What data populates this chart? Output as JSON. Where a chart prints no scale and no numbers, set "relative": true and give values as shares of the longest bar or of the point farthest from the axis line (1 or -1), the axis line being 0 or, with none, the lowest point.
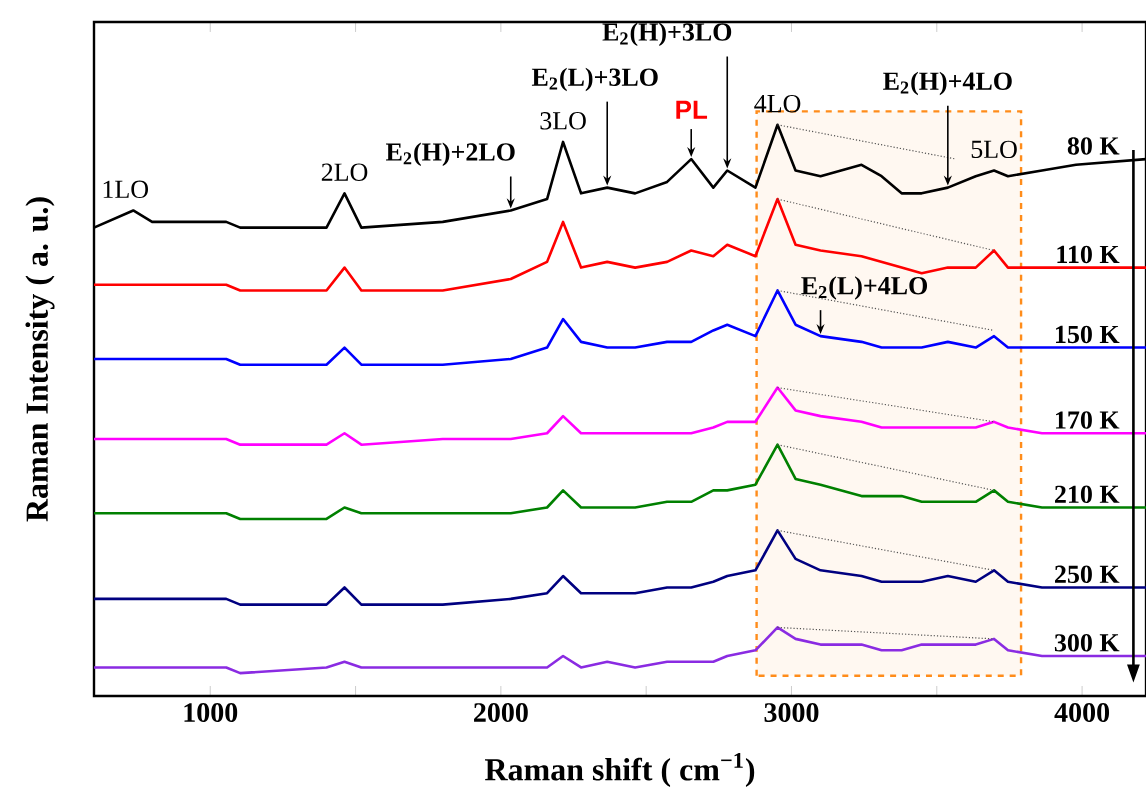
{
  "chart_data": {
    "type": "line",
    "relative": true,
    "xlabel": "Raman shift ( cm$^{−1}$)",
    "ylabel": "Raman Intensity ( a. u.)",
    "xlim": [
      600,
      4220
    ],
    "xticks": [
      1000,
      {
        "value": 1500,
        "label": null
      },
      2000,
      {
        "value": 2500,
        "label": null
      },
      3000,
      {
        "value": 3500,
        "label": null
      },
      4000
    ],
    "marker": "none",
    "line_style": "solid",
    "x": [
      600,
      735,
      800,
      1055,
      1103,
      1400,
      1462,
      1520,
      1800,
      2034,
      2159,
      2214,
      2276,
      2366,
      2462,
      2572,
      2655,
      2731,
      2779,
      2876,
      2952,
      3014,
      3100,
      3241,
      3310,
      3379,
      3448,
      3538,
      3634,
      3697,
      3745,
      3862,
      3979,
      4220
    ],
    "series": [
      {
        "name": "80 K",
        "color": "#000000",
        "values": [
          0.82,
          0.85,
          0.83,
          0.83,
          0.82,
          0.82,
          0.88,
          0.82,
          0.83,
          0.85,
          0.87,
          0.97,
          0.88,
          0.89,
          0.88,
          0.9,
          0.94,
          0.89,
          0.92,
          0.89,
          1.0,
          0.92,
          0.91,
          0.93,
          0.91,
          0.88,
          0.88,
          0.89,
          0.91,
          0.92,
          0.91,
          0.92,
          0.93,
          0.94
        ]
      },
      {
        "name": "110 K",
        "color": "#ff0000",
        "values": [
          0.72,
          0.72,
          0.72,
          0.72,
          0.71,
          0.71,
          0.75,
          0.71,
          0.71,
          0.73,
          0.76,
          0.83,
          0.75,
          0.76,
          0.75,
          0.76,
          0.78,
          0.77,
          0.79,
          0.77,
          0.87,
          0.79,
          0.78,
          0.77,
          0.76,
          0.75,
          0.74,
          0.75,
          0.75,
          0.78,
          0.75,
          0.75,
          0.75,
          0.75
        ]
      },
      {
        "name": "150 K",
        "color": "#0000ff",
        "values": [
          0.59,
          0.59,
          0.59,
          0.59,
          0.58,
          0.58,
          0.61,
          0.58,
          0.58,
          0.59,
          0.61,
          0.66,
          0.62,
          0.61,
          0.61,
          0.62,
          0.62,
          0.64,
          0.65,
          0.63,
          0.71,
          0.65,
          0.63,
          0.62,
          0.61,
          0.61,
          0.61,
          0.62,
          0.61,
          0.63,
          0.61,
          0.61,
          0.61,
          0.61
        ]
      },
      {
        "name": "170 K",
        "color": "#ff00ff",
        "values": [
          0.45,
          0.45,
          0.45,
          0.45,
          0.44,
          0.44,
          0.46,
          0.44,
          0.45,
          0.45,
          0.46,
          0.49,
          0.46,
          0.46,
          0.46,
          0.46,
          0.46,
          0.47,
          0.48,
          0.48,
          0.54,
          0.5,
          0.49,
          0.48,
          0.47,
          0.47,
          0.47,
          0.47,
          0.47,
          0.48,
          0.47,
          0.46,
          0.46,
          0.46
        ]
      },
      {
        "name": "210 K",
        "color": "#008000",
        "values": [
          0.32,
          0.32,
          0.32,
          0.32,
          0.31,
          0.31,
          0.33,
          0.32,
          0.32,
          0.32,
          0.33,
          0.36,
          0.33,
          0.33,
          0.33,
          0.34,
          0.34,
          0.36,
          0.36,
          0.37,
          0.44,
          0.38,
          0.37,
          0.35,
          0.35,
          0.35,
          0.34,
          0.34,
          0.34,
          0.36,
          0.34,
          0.33,
          0.33,
          0.33
        ]
      },
      {
        "name": "250 K",
        "color": "#000080",
        "values": [
          0.17,
          0.17,
          0.17,
          0.17,
          0.16,
          0.16,
          0.19,
          0.16,
          0.16,
          0.17,
          0.18,
          0.21,
          0.18,
          0.18,
          0.18,
          0.19,
          0.19,
          0.2,
          0.21,
          0.22,
          0.29,
          0.24,
          0.22,
          0.21,
          0.2,
          0.2,
          0.2,
          0.21,
          0.2,
          0.22,
          0.2,
          0.19,
          0.19,
          0.19
        ]
      },
      {
        "name": "300 K",
        "color": "#8a2be2",
        "values": [
          0.05,
          0.05,
          0.05,
          0.05,
          0.04,
          0.05,
          0.06,
          0.05,
          0.05,
          0.05,
          0.05,
          0.07,
          0.05,
          0.06,
          0.05,
          0.06,
          0.06,
          0.06,
          0.07,
          0.08,
          0.12,
          0.1,
          0.09,
          0.09,
          0.08,
          0.08,
          0.09,
          0.09,
          0.09,
          0.1,
          0.08,
          0.07,
          0.07,
          0.07
        ]
      },
      {
        "type": "line",
        "color": "#555555",
        "line_style": "dotted",
        "x": [
          2952,
          3566
        ],
        "values": [
          1.0,
          0.94
        ]
      },
      {
        "type": "line",
        "color": "#555555",
        "line_style": "dotted",
        "x": [
          2952,
          3697
        ],
        "values": [
          0.87,
          0.78
        ]
      },
      {
        "type": "line",
        "color": "#555555",
        "line_style": "dotted",
        "x": [
          2952,
          3697
        ],
        "values": [
          0.71,
          0.64
        ]
      },
      {
        "type": "line",
        "color": "#555555",
        "line_style": "dotted",
        "x": [
          2952,
          3697
        ],
        "values": [
          0.54,
          0.48
        ]
      },
      {
        "type": "line",
        "color": "#555555",
        "line_style": "dotted",
        "x": [
          2952,
          3697
        ],
        "values": [
          0.44,
          0.36
        ]
      },
      {
        "type": "line",
        "color": "#555555",
        "line_style": "dotted",
        "x": [
          2952,
          3697
        ],
        "values": [
          0.29,
          0.22
        ]
      },
      {
        "type": "line",
        "color": "#555555",
        "line_style": "dotted",
        "x": [
          2952,
          3697
        ],
        "values": [
          0.12,
          0.1
        ]
      }
    ],
    "bands": [
      {
        "axis": "x",
        "from": 2880,
        "to": 3790,
        "color": "#ff8c1a"
      }
    ],
    "annotations": [
      {
        "text": "1LO",
        "x": 735,
        "y": 0.85
      },
      {
        "text": "2LO",
        "x": 1462,
        "y": 0.88
      },
      {
        "text": "E$_{2}$(H)+2LO",
        "x": 2034,
        "y": 0.85
      },
      {
        "text": "3LO",
        "x": 2214,
        "y": 0.97
      },
      {
        "text": "E$_{2}$(L)+3LO",
        "x": 2366,
        "y": 0.89
      },
      {
        "text": "PL",
        "x": 2655,
        "y": 0.94
      },
      {
        "text": "E$_{2}$(H)+3LO",
        "x": 2779,
        "y": 0.92
      },
      {
        "text": "4LO",
        "x": 2952,
        "y": 1.0
      },
      {
        "text": "E$_{2}$(H)+4LO",
        "x": 3538,
        "y": 0.89
      },
      {
        "text": "5LO",
        "x": 3697,
        "y": 0.92
      },
      {
        "text": "E$_{2}$(L)+4LO",
        "x": 3100,
        "y": 0.63
      }
    ]
  }
}
